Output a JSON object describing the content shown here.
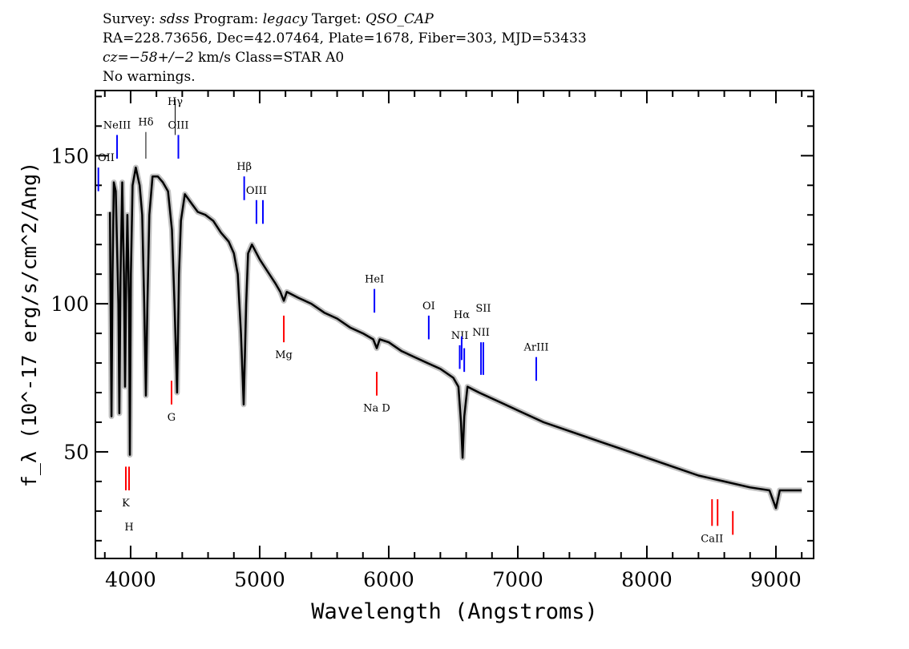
{
  "header": {
    "line1_a": "Survey: ",
    "survey": "sdss",
    "line1_b": " Program: ",
    "program": "legacy",
    "line1_c": " Target: ",
    "target": "QSO_CAP",
    "line2": "RA=228.73656, Dec=42.07464, Plate=1678, Fiber=303, MJD=53433",
    "cz": "cz=−58+/−2",
    "line3_b": " km/s Class=STAR A0",
    "line4": "No warnings."
  },
  "chart_data": {
    "type": "line",
    "xlabel": "Wavelength (Angstroms)",
    "ylabel": "f_λ (10^-17 erg/s/cm^2/Ang)",
    "xlim": [
      3727,
      9292
    ],
    "ylim": [
      14,
      172
    ],
    "xticks": [
      4000,
      5000,
      6000,
      7000,
      8000,
      9000
    ],
    "yticks": [
      50,
      100,
      150
    ],
    "x_minor_step": 200,
    "y_minor_step": 10,
    "grid": false,
    "colors": {
      "spectrum": "#000000",
      "error": "#c0c0c0",
      "emission": "#0000ff",
      "absorption": "#ff0000",
      "balmer": "#000000"
    },
    "spectrum": {
      "wavelength": [
        3840,
        3845,
        3852,
        3860,
        3870,
        3885,
        3905,
        3913,
        3922,
        3935,
        3948,
        3957,
        3966,
        3975,
        3988,
        3994,
        4002,
        4015,
        4040,
        4070,
        4090,
        4105,
        4118,
        4130,
        4145,
        4170,
        4210,
        4250,
        4290,
        4320,
        4340,
        4360,
        4375,
        4390,
        4420,
        4470,
        4520,
        4580,
        4640,
        4700,
        4760,
        4800,
        4830,
        4855,
        4876,
        4895,
        4910,
        4940,
        5000,
        5060,
        5120,
        5160,
        5187,
        5210,
        5300,
        5400,
        5500,
        5600,
        5700,
        5800,
        5880,
        5907,
        5930,
        6000,
        6100,
        6200,
        6300,
        6400,
        6500,
        6540,
        6560,
        6572,
        6585,
        6610,
        6700,
        6800,
        6900,
        7000,
        7200,
        7400,
        7600,
        7800,
        8000,
        8200,
        8400,
        8600,
        8800,
        8950,
        9000,
        9030,
        9100,
        9200
      ],
      "flux": [
        131,
        100,
        62,
        110,
        141,
        138,
        100,
        63,
        110,
        141,
        110,
        72,
        110,
        130,
        100,
        49,
        110,
        140,
        146,
        140,
        130,
        100,
        69,
        100,
        130,
        143,
        143,
        141,
        138,
        125,
        100,
        70,
        110,
        128,
        137,
        134,
        131,
        130,
        128,
        124,
        121,
        117,
        110,
        90,
        66,
        100,
        117,
        120,
        115,
        111,
        107,
        104,
        101,
        104,
        102,
        100,
        97,
        95,
        92,
        90,
        88,
        85,
        88,
        87,
        84,
        82,
        80,
        78,
        75,
        72,
        60,
        48,
        62,
        72,
        70,
        68,
        66,
        64,
        60,
        57,
        54,
        51,
        48,
        45,
        42,
        40,
        38,
        37,
        31,
        37,
        37,
        37
      ]
    },
    "line_markers": [
      {
        "label": "OII",
        "wavelength": 3750,
        "type": "emission",
        "flux_range": [
          138,
          146
        ]
      },
      {
        "label": "NeIII",
        "wavelength": 3895,
        "type": "emission",
        "flux_range": [
          149,
          157
        ]
      },
      {
        "label": "Hδ",
        "wavelength": 4118,
        "type": "balmer",
        "flux_range": [
          149,
          158
        ]
      },
      {
        "label": "Hγ",
        "wavelength": 4345,
        "type": "balmer",
        "flux_range": [
          157,
          169
        ]
      },
      {
        "label": "OIII",
        "wavelength": 4370,
        "type": "emission",
        "flux_range": [
          149,
          157
        ]
      },
      {
        "label": "Hβ",
        "wavelength": 4880,
        "type": "emission",
        "flux_range": [
          135,
          143
        ]
      },
      {
        "label": "OIII",
        "wavelength": 4975,
        "type": "emission",
        "flux_range": [
          127,
          135
        ]
      },
      {
        "label": "",
        "wavelength": 5025,
        "type": "emission",
        "flux_range": [
          127,
          135
        ]
      },
      {
        "label": "HeI",
        "wavelength": 5889,
        "type": "emission",
        "flux_range": [
          97,
          105
        ]
      },
      {
        "label": "OI",
        "wavelength": 6310,
        "type": "emission",
        "flux_range": [
          88,
          96
        ]
      },
      {
        "label": "NII",
        "wavelength": 6550,
        "type": "emission",
        "flux_range": [
          78,
          86
        ]
      },
      {
        "label": "Hα",
        "wavelength": 6565,
        "type": "emission",
        "flux_range": [
          81,
          89
        ]
      },
      {
        "label": "",
        "wavelength": 6585,
        "type": "emission",
        "flux_range": [
          77,
          85
        ]
      },
      {
        "label": "NII",
        "wavelength": 6715,
        "type": "emission",
        "flux_range": [
          76,
          87
        ]
      },
      {
        "label": "SII",
        "wavelength": 6733,
        "type": "emission",
        "flux_range": [
          76,
          87
        ]
      },
      {
        "label": "ArIII",
        "wavelength": 7143,
        "type": "emission",
        "flux_range": [
          74,
          82
        ]
      },
      {
        "label": "K",
        "wavelength": 3963,
        "type": "absorption",
        "flux_range": [
          37,
          45
        ]
      },
      {
        "label": "H",
        "wavelength": 3988,
        "type": "absorption",
        "flux_range": [
          37,
          45
        ]
      },
      {
        "label": "G",
        "wavelength": 4317,
        "type": "absorption",
        "flux_range": [
          66,
          74
        ]
      },
      {
        "label": "Mg",
        "wavelength": 5187,
        "type": "absorption",
        "flux_range": [
          87,
          96
        ]
      },
      {
        "label": "Na D",
        "wavelength": 5907,
        "type": "absorption",
        "flux_range": [
          69,
          77
        ]
      },
      {
        "label": "CaII",
        "wavelength": 8505,
        "type": "absorption",
        "flux_range": [
          25,
          34
        ]
      },
      {
        "label": "",
        "wavelength": 8548,
        "type": "absorption",
        "flux_range": [
          25,
          34
        ]
      },
      {
        "label": "",
        "wavelength": 8666,
        "type": "absorption",
        "flux_range": [
          22,
          30
        ]
      }
    ]
  }
}
